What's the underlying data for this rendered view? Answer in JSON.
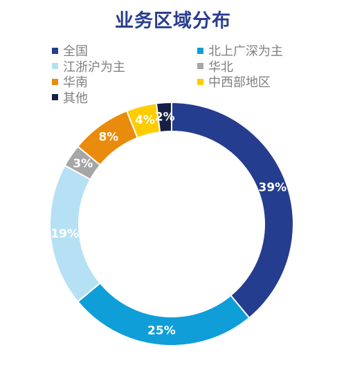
{
  "chart_data": {
    "type": "pie",
    "title": "业务区域分布",
    "legend_position": "top",
    "categories": [
      "全国",
      "北上广深为主",
      "江浙沪为主",
      "华北",
      "华南",
      "中西部地区",
      "其他"
    ],
    "values": [
      39,
      25,
      19,
      3,
      8,
      4,
      2
    ],
    "labels": [
      "39%",
      "25%",
      "19%",
      "3%",
      "8%",
      "4%",
      "2%"
    ],
    "colors": [
      "#253d8e",
      "#0f9ed8",
      "#b6e1f5",
      "#a6a6a6",
      "#e98b0c",
      "#ffcc00",
      "#172044"
    ],
    "unit": "%"
  }
}
